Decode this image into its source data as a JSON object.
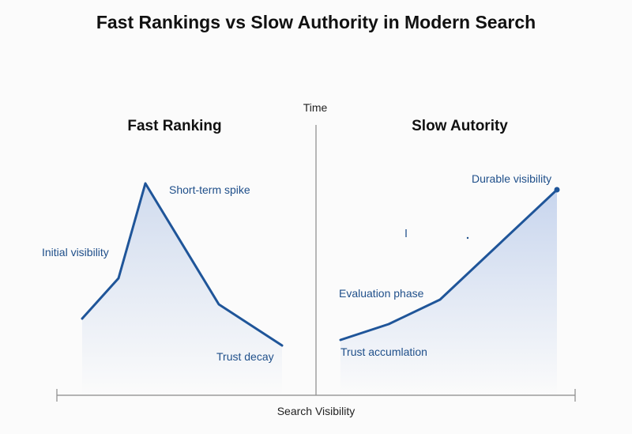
{
  "title": "Fast Rankings vs Slow Authority in Modern Search",
  "axis": {
    "vertical_label": "Time",
    "horizontal_label": "Search Visibility"
  },
  "panels": {
    "left": {
      "title": "Fast Ranking",
      "labels": {
        "initial": "Initial visibility",
        "spike": "Short-term spike",
        "decay": "Trust decay"
      }
    },
    "right": {
      "title": "Slow Autority",
      "labels": {
        "evaluation": "Evaluation phase",
        "accumulation": "Trust accumlation",
        "durable": "Durable visibility"
      }
    }
  },
  "colors": {
    "line": "#1f5599",
    "annotation": "#1f4f8a",
    "fill": "#c9d6ec"
  }
}
